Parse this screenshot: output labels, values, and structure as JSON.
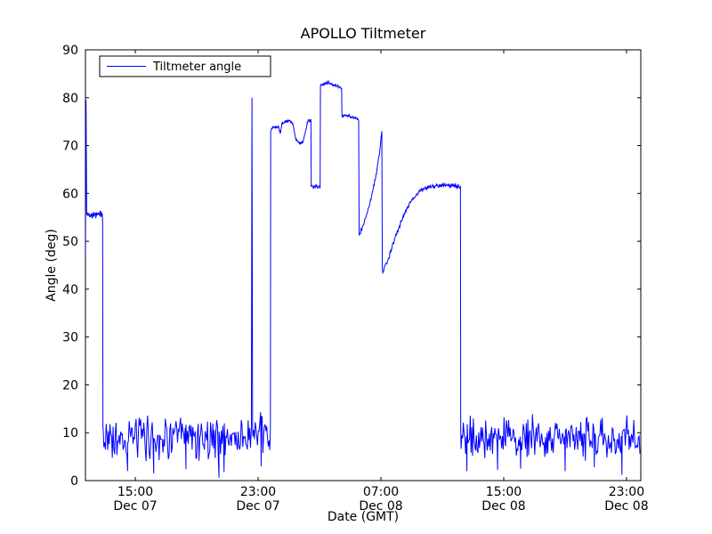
{
  "chart_data": {
    "type": "line",
    "title": "APOLLO Tiltmeter",
    "xlabel": "Date (GMT)",
    "ylabel": "Angle (deg)",
    "series_name": "Tiltmeter angle",
    "line_color": "#0000ff",
    "background_color": "#ffffff",
    "frame_color": "#000000",
    "legend_position": "upper left",
    "grid": false,
    "ylim": [
      0,
      90
    ],
    "yticks": [
      0,
      10,
      20,
      30,
      40,
      50,
      60,
      70,
      80,
      90
    ],
    "x_unit": "hours since Dec 07 00:00 GMT",
    "xlim_hours": [
      11.75,
      47.93
    ],
    "xticks": [
      {
        "t": 15,
        "time": "15:00",
        "date": "Dec 07"
      },
      {
        "t": 23,
        "time": "23:00",
        "date": "Dec 07"
      },
      {
        "t": 31,
        "time": "07:00",
        "date": "Dec 08"
      },
      {
        "t": 39,
        "time": "15:00",
        "date": "Dec 08"
      },
      {
        "t": 47,
        "time": "23:00",
        "date": "Dec 08"
      }
    ],
    "segments": [
      {
        "type": "path",
        "points": [
          [
            11.75,
            47.0
          ],
          [
            11.79,
            79.5
          ],
          [
            11.83,
            56.5
          ]
        ]
      },
      {
        "type": "noisy_flat",
        "t0": 11.83,
        "t1": 12.86,
        "base": 55.6,
        "amp": 0.9,
        "step": 0.02
      },
      {
        "type": "path",
        "points": [
          [
            12.87,
            54.0
          ],
          [
            12.89,
            11.0
          ]
        ]
      },
      {
        "type": "noisy_flat",
        "t0": 12.9,
        "t1": 22.54,
        "base": 9.0,
        "amp": 5.5,
        "step": 0.05,
        "outliers": [
          [
            14.5,
            2.0
          ],
          [
            16.2,
            1.5
          ],
          [
            18.3,
            2.4
          ],
          [
            20.45,
            0.6
          ],
          [
            20.78,
            1.8
          ]
        ]
      },
      {
        "type": "path",
        "points": [
          [
            22.56,
            11.0
          ],
          [
            22.6,
            80.0
          ],
          [
            22.64,
            11.0
          ]
        ]
      },
      {
        "type": "noisy_flat",
        "t0": 22.66,
        "t1": 23.78,
        "base": 9.5,
        "amp": 5.0,
        "step": 0.05,
        "outliers": [
          [
            23.2,
            3.0
          ]
        ]
      },
      {
        "type": "noisy_path",
        "amp": 0.45,
        "step": 0.025,
        "points": [
          [
            23.8,
            11.0
          ],
          [
            23.82,
            73.0
          ],
          [
            23.95,
            73.8
          ],
          [
            24.35,
            73.8
          ],
          [
            24.45,
            72.6
          ],
          [
            24.55,
            74.6
          ],
          [
            25.05,
            75.2
          ],
          [
            25.25,
            74.6
          ],
          [
            25.45,
            71.5
          ],
          [
            25.75,
            70.3
          ],
          [
            25.95,
            71.0
          ],
          [
            26.25,
            75.2
          ],
          [
            26.44,
            75.4
          ]
        ]
      },
      {
        "type": "noisy_path",
        "amp": 0.8,
        "step": 0.03,
        "points": [
          [
            26.46,
            61.4
          ],
          [
            27.04,
            61.6
          ]
        ]
      },
      {
        "type": "noisy_path",
        "amp": 0.4,
        "step": 0.025,
        "points": [
          [
            27.06,
            82.4
          ],
          [
            27.5,
            83.2
          ],
          [
            27.9,
            82.7
          ],
          [
            28.44,
            82.0
          ]
        ]
      },
      {
        "type": "noisy_path",
        "amp": 0.35,
        "step": 0.025,
        "points": [
          [
            28.46,
            76.3
          ],
          [
            28.9,
            76.2
          ],
          [
            29.55,
            75.4
          ]
        ]
      },
      {
        "type": "noisy_path",
        "amp": 0.5,
        "step": 0.03,
        "points": [
          [
            29.58,
            51.2
          ],
          [
            29.9,
            53.8
          ],
          [
            30.2,
            57.0
          ],
          [
            30.5,
            61.0
          ],
          [
            30.75,
            65.0
          ],
          [
            30.95,
            69.5
          ],
          [
            31.06,
            73.0
          ]
        ]
      },
      {
        "type": "path",
        "points": [
          [
            31.09,
            44.5
          ]
        ]
      },
      {
        "type": "noisy_path",
        "amp": 0.55,
        "step": 0.03,
        "points": [
          [
            31.12,
            43.4
          ],
          [
            31.5,
            46.5
          ],
          [
            31.9,
            50.5
          ],
          [
            32.3,
            54.0
          ],
          [
            32.7,
            57.0
          ],
          [
            33.1,
            59.0
          ],
          [
            33.5,
            60.4
          ],
          [
            34.0,
            61.2
          ],
          [
            34.6,
            61.7
          ],
          [
            35.3,
            61.7
          ],
          [
            36.18,
            61.4
          ]
        ]
      },
      {
        "type": "path",
        "points": [
          [
            36.2,
            10.5
          ]
        ]
      },
      {
        "type": "noisy_flat",
        "t0": 36.22,
        "t1": 47.93,
        "base": 9.0,
        "amp": 5.2,
        "step": 0.05,
        "outliers": [
          [
            36.6,
            2.0
          ],
          [
            38.6,
            2.2
          ],
          [
            40.1,
            2.5
          ],
          [
            43.0,
            2.0
          ],
          [
            44.9,
            2.8
          ],
          [
            46.7,
            1.2
          ]
        ]
      }
    ]
  }
}
